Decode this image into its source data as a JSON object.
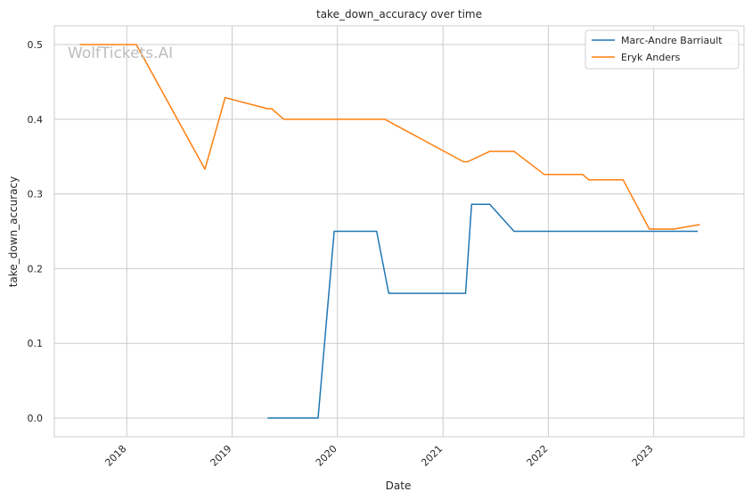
{
  "chart_data": {
    "type": "line",
    "title": "take_down_accuracy over time",
    "xlabel": "Date",
    "ylabel": "take_down_accuracy",
    "watermark": "WolfTickets.AI",
    "x_ticks": [
      "2018",
      "2019",
      "2020",
      "2021",
      "2022",
      "2023"
    ],
    "y_ticks": [
      "0.0",
      "0.1",
      "0.2",
      "0.3",
      "0.4",
      "0.5"
    ],
    "xlim": [
      "2017-04-25",
      "2023-11-10"
    ],
    "ylim": [
      -0.025,
      0.525
    ],
    "grid": true,
    "legend_position": "top-right",
    "series": [
      {
        "name": "Marc-Andre Barriault",
        "color": "#1f77b4",
        "points": [
          [
            "2019-05-04",
            0.0
          ],
          [
            "2019-10-26",
            0.0
          ],
          [
            "2019-12-21",
            0.25
          ],
          [
            "2020-05-16",
            0.25
          ],
          [
            "2020-06-27",
            0.167
          ],
          [
            "2021-03-20",
            0.167
          ],
          [
            "2021-04-10",
            0.286
          ],
          [
            "2021-06-12",
            0.286
          ],
          [
            "2021-09-04",
            0.25
          ],
          [
            "2023-06-03",
            0.25
          ]
        ]
      },
      {
        "name": "Eryk Anders",
        "color": "#ff7f0e",
        "points": [
          [
            "2017-07-22",
            0.5
          ],
          [
            "2018-02-03",
            0.5
          ],
          [
            "2018-09-29",
            0.333
          ],
          [
            "2018-12-08",
            0.429
          ],
          [
            "2019-05-04",
            0.414
          ],
          [
            "2019-05-18",
            0.414
          ],
          [
            "2019-06-29",
            0.4
          ],
          [
            "2020-06-13",
            0.4
          ],
          [
            "2021-03-13",
            0.343
          ],
          [
            "2021-03-27",
            0.343
          ],
          [
            "2021-06-12",
            0.357
          ],
          [
            "2021-09-04",
            0.357
          ],
          [
            "2021-12-18",
            0.326
          ],
          [
            "2022-04-30",
            0.326
          ],
          [
            "2022-05-21",
            0.319
          ],
          [
            "2022-09-17",
            0.319
          ],
          [
            "2022-12-17",
            0.253
          ],
          [
            "2023-03-11",
            0.253
          ],
          [
            "2023-06-10",
            0.259
          ]
        ]
      }
    ]
  }
}
